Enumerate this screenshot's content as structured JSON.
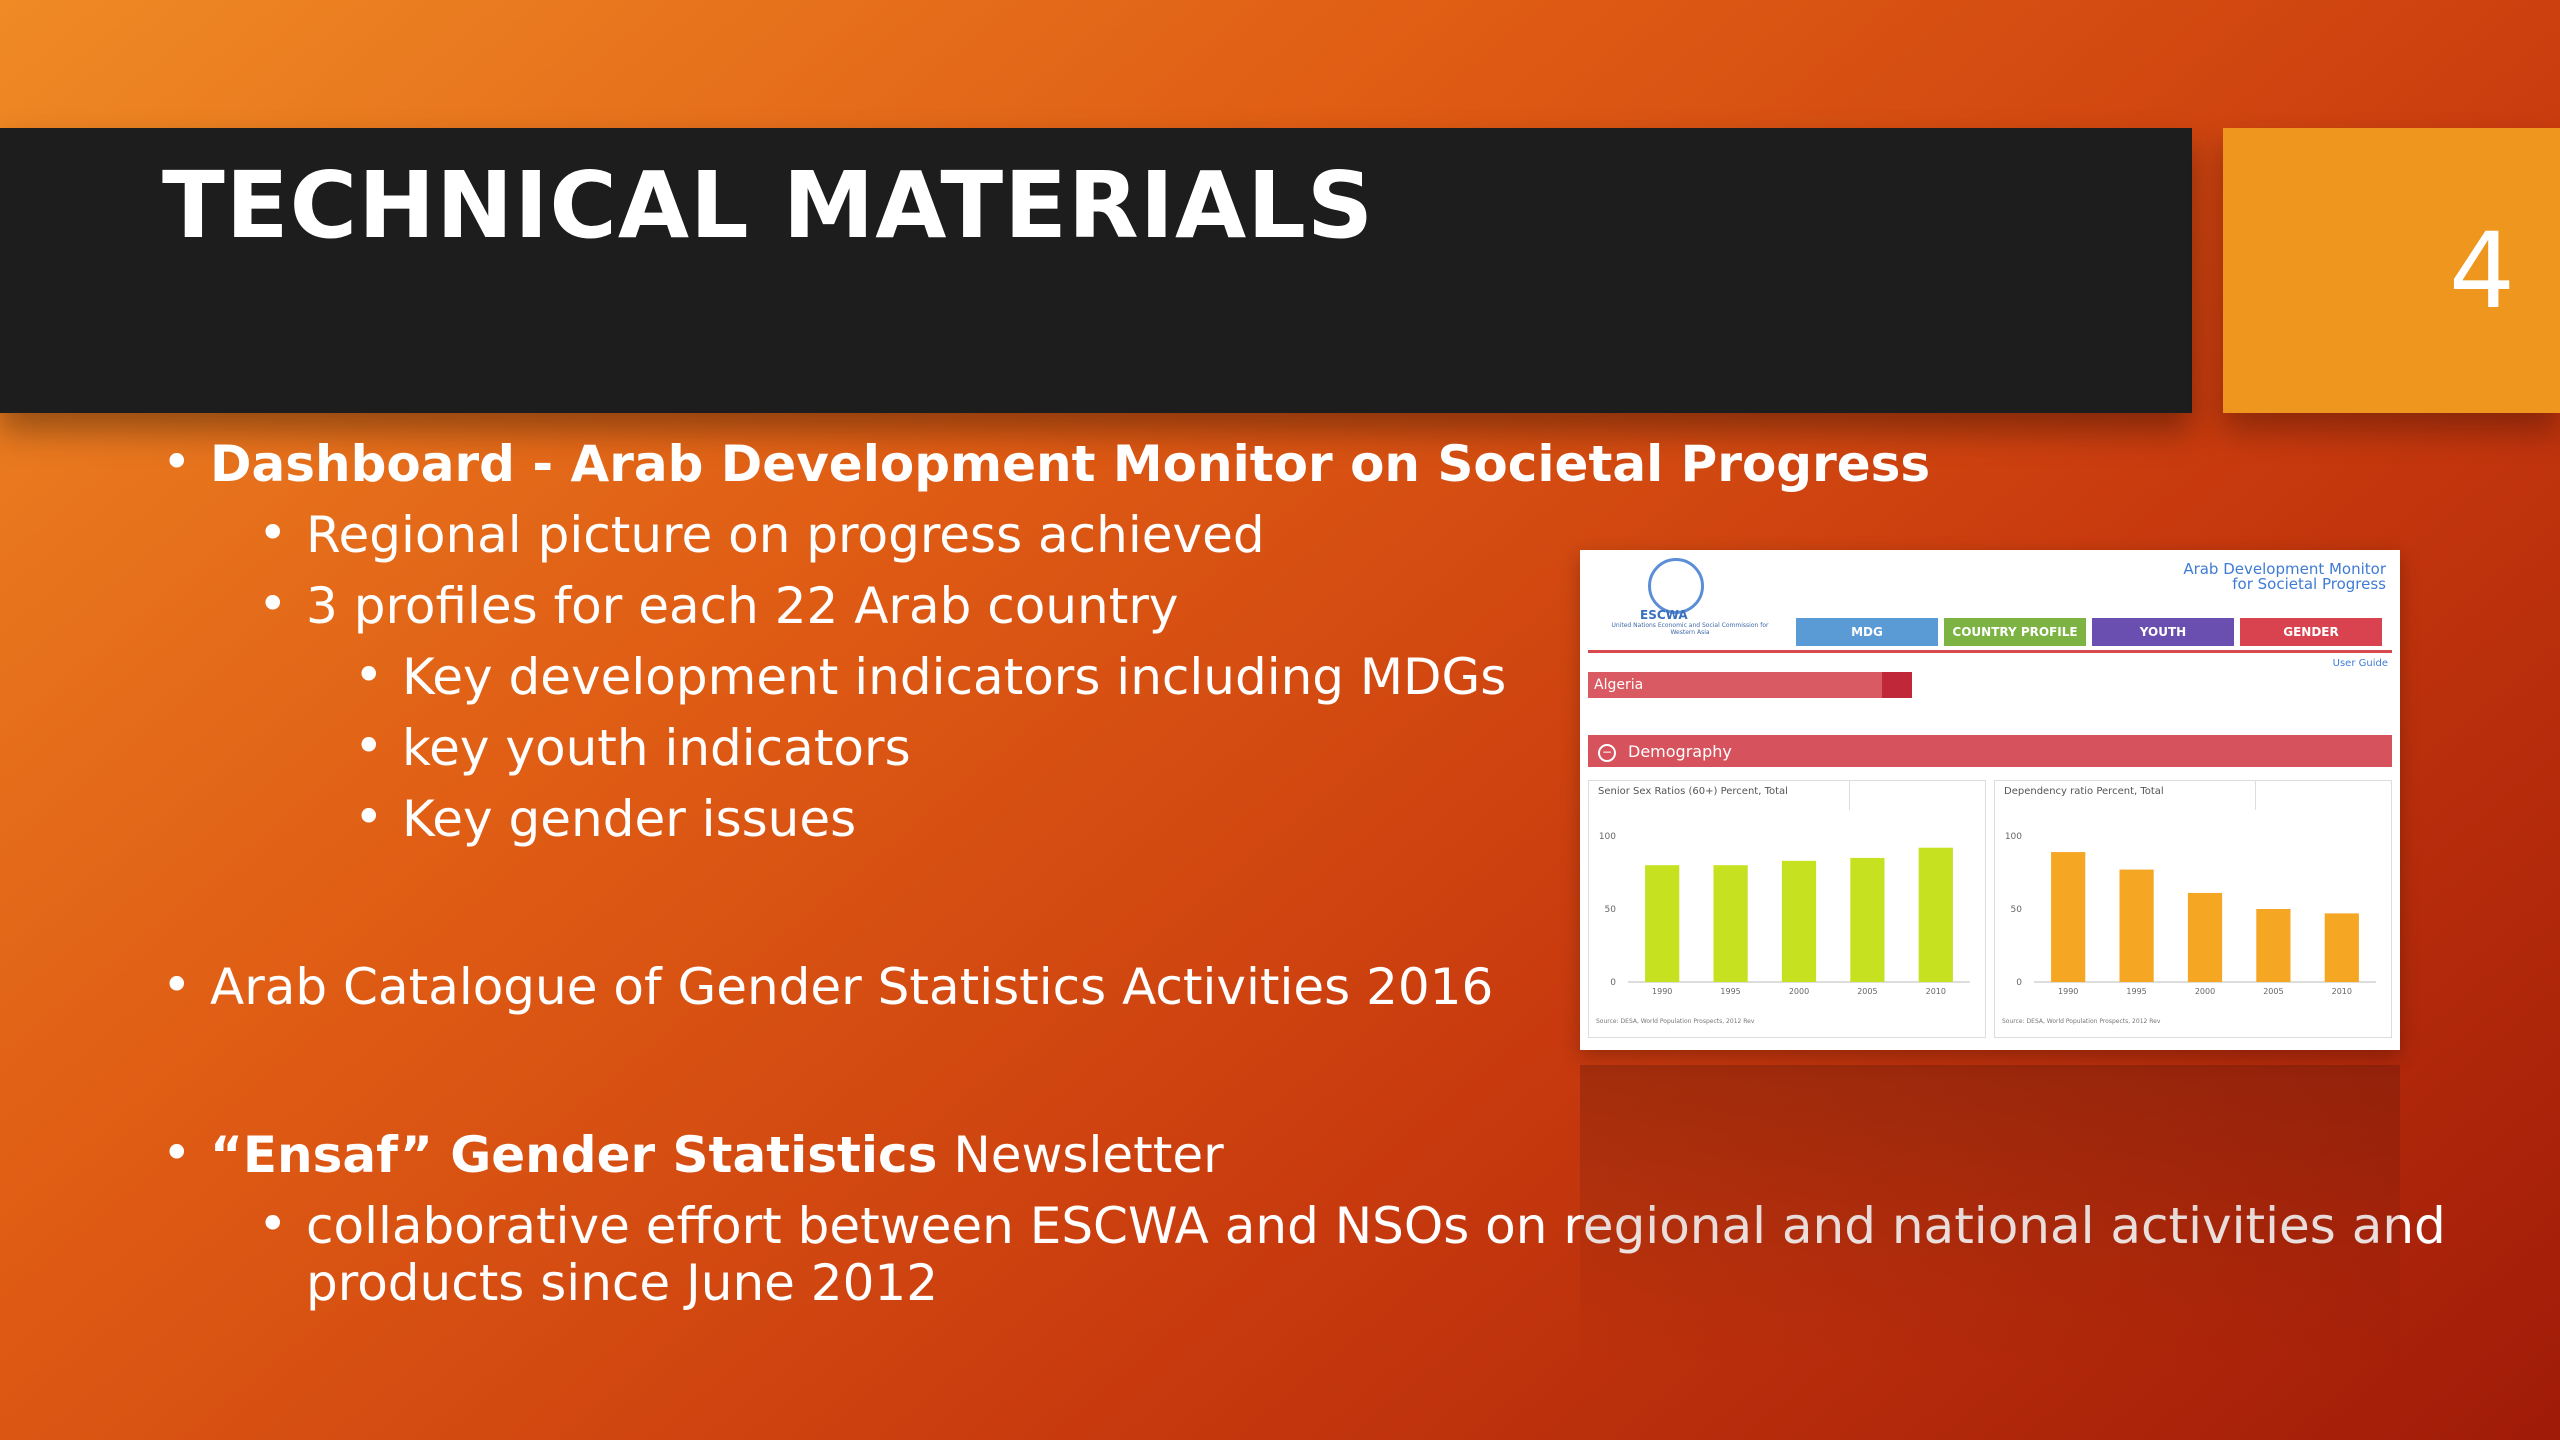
{
  "slide": {
    "title": "TECHNICAL MATERIALS",
    "number": "4"
  },
  "bullets": {
    "b1": {
      "bold": "Dashboard - Arab Development Monitor on Societal Progress"
    },
    "b1_1": "Regional picture on progress achieved",
    "b1_2": "3 profiles for each 22 Arab country",
    "b1_2_1": "Key development indicators including MDGs",
    "b1_2_2": "key youth indicators",
    "b1_2_3": "Key gender issues",
    "b2": "Arab Catalogue of Gender Statistics Activities 2016",
    "b3": {
      "bold": "“Ensaf” Gender Statistics",
      "normal": "Newsletter"
    },
    "b3_1_line1": "collaborative effort between ESCWA and NSOs on regional and national activities and",
    "b3_1_line2": "products since June 2012",
    "dot": "•"
  },
  "dashboard": {
    "logo_label": "ESCWA",
    "logo_sub": "United Nations Economic and Social Commission for Western Asia",
    "header_title_1": "Arab Development Monitor",
    "header_title_2": "for Societal Progress",
    "tabs": [
      {
        "label": "MDG",
        "color": "#5b9bd5"
      },
      {
        "label": "COUNTRY PROFILE",
        "color": "#7cb342"
      },
      {
        "label": "YOUTH",
        "color": "#6a4fb0"
      },
      {
        "label": "GENDER",
        "color": "#d9434f"
      }
    ],
    "user_guide": "User Guide",
    "country": "Algeria",
    "section": "Demography",
    "minus_icon": "−",
    "panel_left_title": "Senior Sex Ratios (60+) Percent, Total",
    "panel_right_title": "Dependency ratio Percent, Total",
    "source_left": "Source: DESA, World Population Prospects, 2012 Rev",
    "source_right": "Source: DESA, World Population Prospects, 2012 Rev"
  },
  "chart_data": [
    {
      "type": "bar",
      "title": "Senior Sex Ratios (60+) Percent, Total",
      "categories": [
        "1990",
        "1995",
        "2000",
        "2005",
        "2010"
      ],
      "values": [
        80,
        80,
        83,
        85,
        92
      ],
      "ylim": [
        0,
        100
      ],
      "yticks": [
        "100",
        "50",
        "0"
      ],
      "color": "#c5e11f"
    },
    {
      "type": "bar",
      "title": "Dependency ratio Percent, Total",
      "categories": [
        "1990",
        "1995",
        "2000",
        "2005",
        "2010"
      ],
      "values": [
        89,
        77,
        61,
        50,
        47
      ],
      "ylim": [
        0,
        100
      ],
      "yticks": [
        "100",
        "50",
        "0"
      ],
      "color": "#f5a623"
    }
  ]
}
